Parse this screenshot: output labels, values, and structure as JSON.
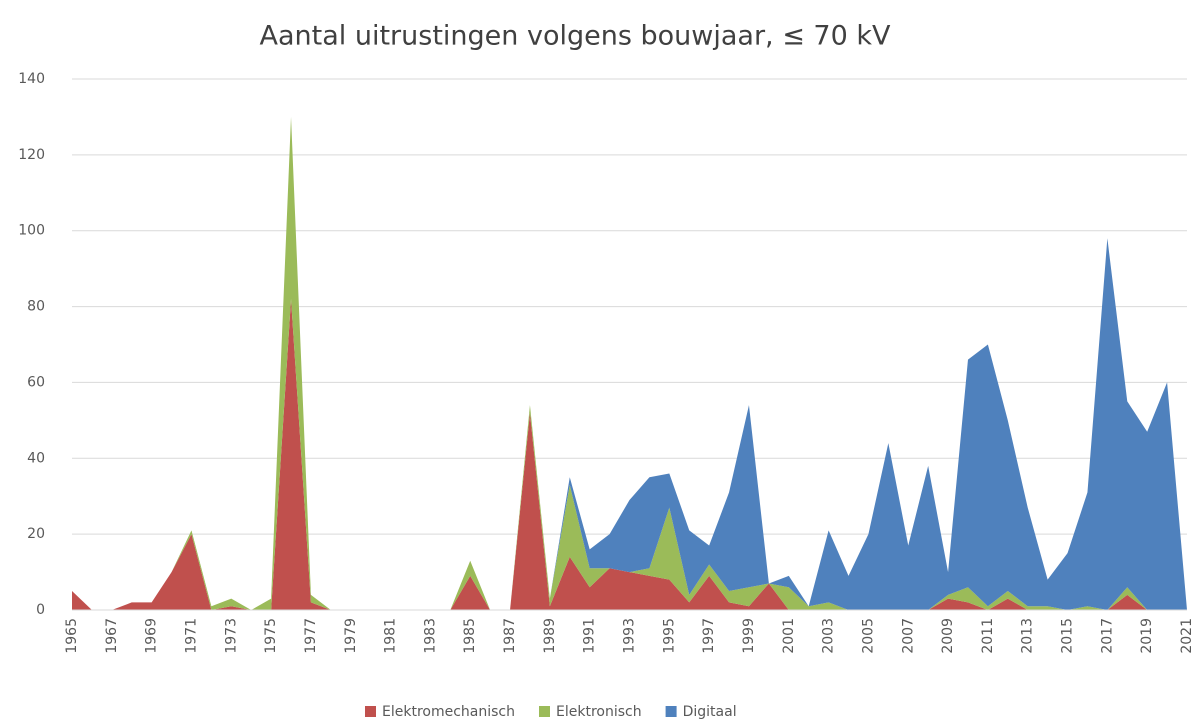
{
  "chart_data": {
    "type": "area",
    "stacked": true,
    "title": "Aantal uitrustingen volgens bouwjaar, ≤ 70 kV",
    "categories": [
      "1965",
      null,
      "1967",
      null,
      "1969",
      null,
      "1971",
      null,
      "1973",
      null,
      "1975",
      null,
      "1977",
      null,
      "1979",
      null,
      "1981",
      null,
      "1983",
      null,
      "1985",
      null,
      "1987",
      null,
      "1989",
      null,
      "1991",
      null,
      "1993",
      null,
      "1995",
      null,
      "1997",
      null,
      "1999",
      null,
      "2001",
      null,
      "2003",
      null,
      "2005",
      null,
      "2007",
      null,
      "2009",
      null,
      "2011",
      null,
      "2013",
      null,
      "2015",
      null,
      "2017",
      null,
      "2019",
      null,
      "2021"
    ],
    "series": [
      {
        "name": "Elektromechanisch",
        "color": "#c0504d",
        "values": [
          5,
          0,
          0,
          2,
          2,
          10,
          20,
          0,
          1,
          0,
          0,
          82,
          2,
          0,
          0,
          0,
          0,
          0,
          0,
          0,
          9,
          0,
          0,
          52,
          1,
          14,
          6,
          11,
          10,
          9,
          8,
          2,
          9,
          2,
          1,
          7,
          0,
          0,
          0,
          0,
          0,
          0,
          0,
          0,
          3,
          2,
          0,
          3,
          0,
          0,
          0,
          0,
          0,
          4,
          0,
          0,
          0
        ]
      },
      {
        "name": "Elektronisch",
        "color": "#9bbb59",
        "values": [
          0,
          0,
          0,
          0,
          0,
          0,
          1,
          1,
          2,
          0,
          3,
          48,
          2,
          0,
          0,
          0,
          0,
          0,
          0,
          0,
          4,
          0,
          0,
          2,
          2,
          19,
          5,
          0,
          0,
          2,
          19,
          2,
          3,
          3,
          5,
          0,
          6,
          1,
          2,
          0,
          0,
          0,
          0,
          0,
          1,
          4,
          1,
          2,
          1,
          1,
          0,
          1,
          0,
          2,
          0,
          0,
          0
        ]
      },
      {
        "name": "Digitaal",
        "color": "#4f81bd",
        "values": [
          0,
          0,
          0,
          0,
          0,
          0,
          0,
          0,
          0,
          0,
          0,
          0,
          0,
          0,
          0,
          0,
          0,
          0,
          0,
          0,
          0,
          0,
          0,
          0,
          0,
          2,
          5,
          9,
          19,
          24,
          9,
          17,
          5,
          26,
          48,
          0,
          3,
          0,
          19,
          9,
          20,
          44,
          17,
          38,
          6,
          60,
          69,
          45,
          26,
          7,
          15,
          30,
          98,
          49,
          47,
          60,
          0
        ]
      }
    ],
    "ylim": [
      0,
      140
    ],
    "yticks": [
      0,
      20,
      40,
      60,
      80,
      100,
      120,
      140
    ],
    "grid": true,
    "legend": "bottom"
  }
}
